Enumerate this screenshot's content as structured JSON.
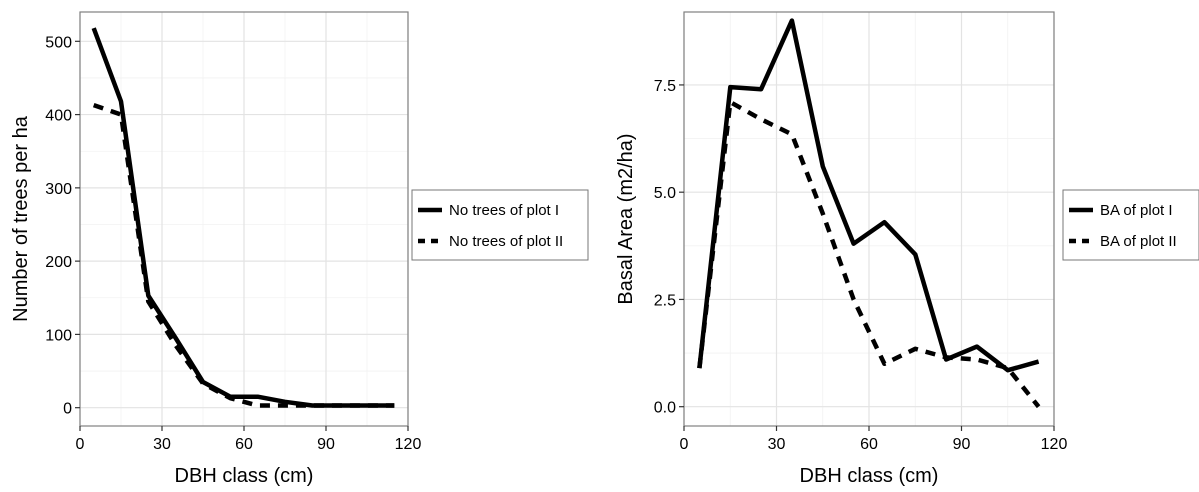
{
  "chart_data": [
    {
      "type": "line",
      "xlabel": "DBH class (cm)",
      "ylabel": "Number of trees per ha",
      "xlim": [
        0,
        120
      ],
      "ylim": [
        -25,
        540
      ],
      "xticks": [
        0,
        30,
        60,
        90,
        120
      ],
      "yticks": [
        0,
        100,
        200,
        300,
        400,
        500
      ],
      "grid": true,
      "legend_position": "right",
      "series": [
        {
          "name": "No trees of plot I",
          "style": "solid",
          "x": [
            5,
            15,
            25,
            35,
            45,
            55,
            65,
            75,
            85,
            95,
            105,
            115
          ],
          "y": [
            518,
            418,
            153,
            95,
            35,
            15,
            15,
            8,
            3,
            3,
            3,
            3
          ]
        },
        {
          "name": "No trees of plot II",
          "style": "dashed",
          "x": [
            5,
            15,
            25,
            35,
            45,
            55,
            65,
            75,
            85,
            95,
            105,
            115
          ],
          "y": [
            413,
            400,
            145,
            85,
            33,
            13,
            3,
            3,
            3,
            3,
            3,
            3
          ]
        }
      ]
    },
    {
      "type": "line",
      "xlabel": "DBH class (cm)",
      "ylabel": "Basal Area (m2/ha)",
      "xlim": [
        0,
        120
      ],
      "ylim": [
        -0.45,
        9.2
      ],
      "xticks": [
        0,
        30,
        60,
        90,
        120
      ],
      "yticks": [
        0.0,
        2.5,
        5.0,
        7.5
      ],
      "ytick_labels": [
        "0.0",
        "2.5",
        "5.0",
        "7.5"
      ],
      "grid": true,
      "legend_position": "right",
      "series": [
        {
          "name": "BA of plot I",
          "style": "solid",
          "x": [
            5,
            15,
            25,
            35,
            45,
            55,
            65,
            75,
            85,
            95,
            105,
            115
          ],
          "y": [
            0.9,
            7.45,
            7.4,
            9.0,
            5.6,
            3.8,
            4.3,
            3.55,
            1.1,
            1.4,
            0.85,
            1.05
          ]
        },
        {
          "name": "BA of plot II",
          "style": "dashed",
          "x": [
            5,
            15,
            25,
            35,
            45,
            55,
            65,
            75,
            85,
            95,
            105,
            115
          ],
          "y": [
            0.9,
            7.1,
            6.7,
            6.35,
            4.5,
            2.5,
            1.0,
            1.35,
            1.15,
            1.1,
            0.9,
            0.0
          ]
        }
      ]
    }
  ]
}
